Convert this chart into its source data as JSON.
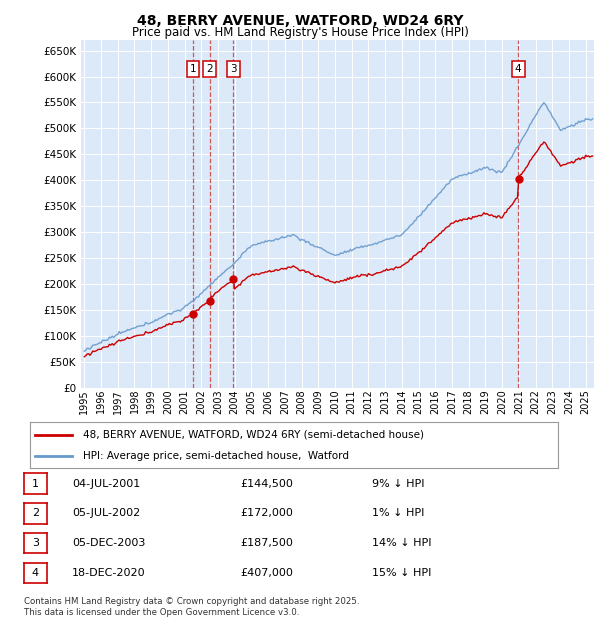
{
  "title": "48, BERRY AVENUE, WATFORD, WD24 6RY",
  "subtitle": "Price paid vs. HM Land Registry's House Price Index (HPI)",
  "background_color": "#dce9f8",
  "plot_bg_color": "#dce9f8",
  "grid_color": "#ffffff",
  "ylim": [
    0,
    670000
  ],
  "yticks": [
    0,
    50000,
    100000,
    150000,
    200000,
    250000,
    300000,
    350000,
    400000,
    450000,
    500000,
    550000,
    600000,
    650000
  ],
  "ytick_labels": [
    "£0",
    "£50K",
    "£100K",
    "£150K",
    "£200K",
    "£250K",
    "£300K",
    "£350K",
    "£400K",
    "£450K",
    "£500K",
    "£550K",
    "£600K",
    "£650K"
  ],
  "sale_dates": [
    2001.5,
    2002.5,
    2003.92,
    2020.96
  ],
  "sale_prices": [
    144500,
    172000,
    187500,
    407000
  ],
  "sale_labels": [
    "1",
    "2",
    "3",
    "4"
  ],
  "legend_line1": "48, BERRY AVENUE, WATFORD, WD24 6RY (semi-detached house)",
  "legend_line2": "HPI: Average price, semi-detached house,  Watford",
  "table_rows": [
    {
      "num": "1",
      "date": "04-JUL-2001",
      "price": "£144,500",
      "pct": "9% ↓ HPI"
    },
    {
      "num": "2",
      "date": "05-JUL-2002",
      "price": "£172,000",
      "pct": "1% ↓ HPI"
    },
    {
      "num": "3",
      "date": "05-DEC-2003",
      "price": "£187,500",
      "pct": "14% ↓ HPI"
    },
    {
      "num": "4",
      "date": "18-DEC-2020",
      "price": "£407,000",
      "pct": "15% ↓ HPI"
    }
  ],
  "footnote": "Contains HM Land Registry data © Crown copyright and database right 2025.\nThis data is licensed under the Open Government Licence v3.0.",
  "red_line_color": "#cc0000",
  "blue_line_color": "#6699cc",
  "vline_color": "#cc3333",
  "box_color": "#cc0000",
  "marker_color": "#cc0000"
}
